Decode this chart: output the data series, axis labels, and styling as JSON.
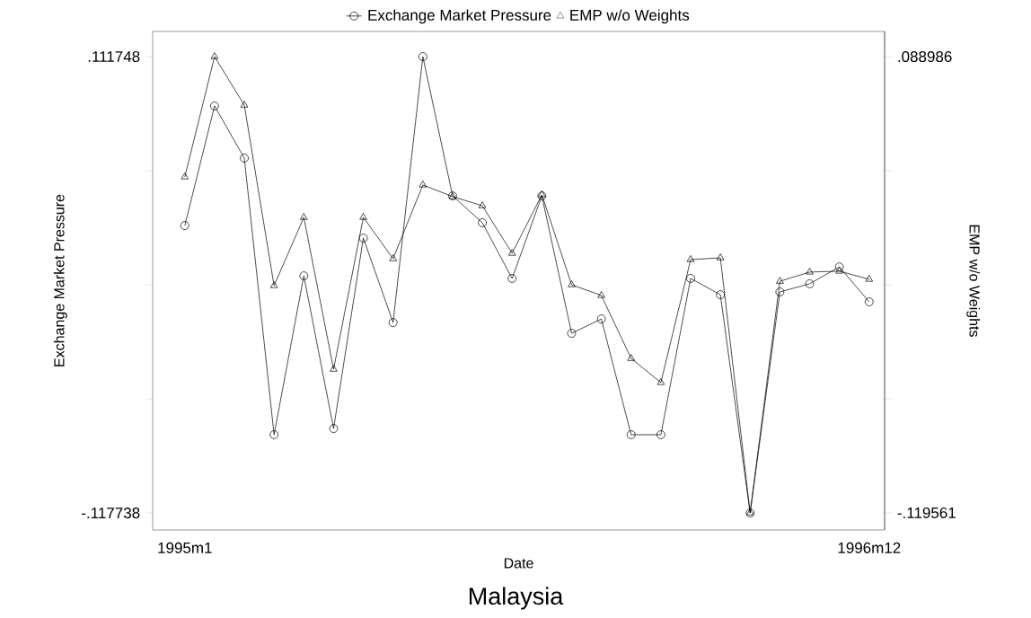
{
  "chart_data": {
    "type": "line",
    "title": "Malaysia",
    "xlabel": "Date",
    "ylabel": "Exchange Market Pressure",
    "y2label": "EMP w/o Weights",
    "categories": [
      "1995m1",
      null,
      null,
      null,
      null,
      null,
      null,
      null,
      null,
      null,
      null,
      null,
      null,
      null,
      null,
      null,
      null,
      null,
      null,
      null,
      null,
      null,
      null,
      "1996m12"
    ],
    "ylim": [
      -0.1263,
      0.1244
    ],
    "yticks": [
      {
        "value": -0.117738,
        "label": "-.117738"
      },
      {
        "value": -0.0603665,
        "label": null
      },
      {
        "value": -0.002995,
        "label": null
      },
      {
        "value": 0.0543765,
        "label": null
      },
      {
        "value": 0.111748,
        "label": ".111748"
      }
    ],
    "y2lim": [
      -0.1274,
      0.1005
    ],
    "y2ticks": [
      {
        "value": -0.119561,
        "label": "-.119561"
      },
      {
        "value": -0.06742425,
        "label": null
      },
      {
        "value": -0.0152875,
        "label": null
      },
      {
        "value": 0.03684925,
        "label": null
      },
      {
        "value": 0.088986,
        "label": ".088986"
      }
    ],
    "legend": "top",
    "series": [
      {
        "name": "Exchange Market Pressure",
        "color": "#000000",
        "marker": "circle",
        "values": [
          0.0268,
          0.0869,
          0.0607,
          -0.0784,
          0.0015,
          -0.0753,
          0.0205,
          -0.022,
          0.111748,
          0.0417,
          0.0282,
          0.0002,
          0.0417,
          -0.0274,
          -0.0202,
          -0.0784,
          -0.0784,
          0.0002,
          -0.008,
          -0.117738,
          -0.0066,
          -0.0025,
          0.006,
          -0.0116
        ]
      },
      {
        "name": "EMP w/o Weights",
        "color": "#000000",
        "marker": "triangle",
        "axis": "y2",
        "values": [
          0.034,
          0.088986,
          0.0668,
          -0.0157,
          0.0155,
          -0.0539,
          0.0155,
          -0.0034,
          0.0303,
          0.025,
          0.0208,
          -0.0009,
          0.0258,
          -0.0153,
          -0.0202,
          -0.049,
          -0.06,
          -0.0038,
          -0.003,
          -0.119561,
          -0.0137,
          -0.0095,
          -0.0091,
          -0.0128
        ]
      }
    ]
  }
}
